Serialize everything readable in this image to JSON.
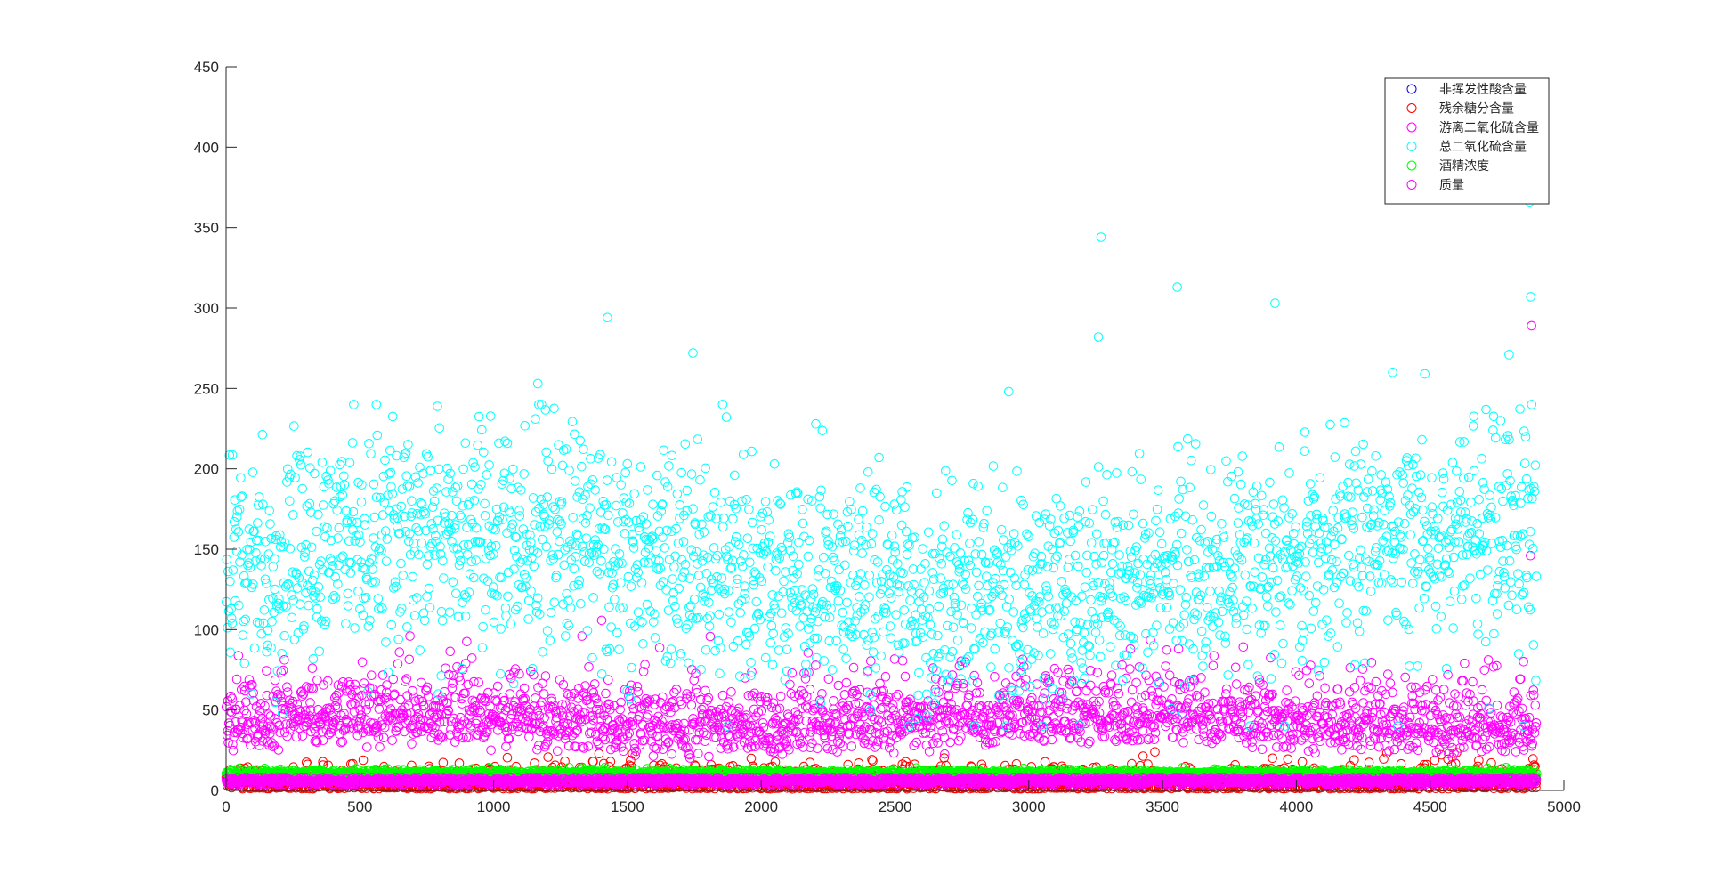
{
  "chart_data": {
    "type": "scatter",
    "title": "",
    "xlabel": "",
    "ylabel": "",
    "xlim": [
      0,
      5000
    ],
    "ylim": [
      0,
      450
    ],
    "x_ticks": [
      0,
      500,
      1000,
      1500,
      2000,
      2500,
      3000,
      3500,
      4000,
      4500,
      5000
    ],
    "y_ticks": [
      0,
      50,
      100,
      150,
      200,
      250,
      300,
      350,
      400,
      450
    ],
    "x_tick_labels": [
      "0",
      "500",
      "1000",
      "1500",
      "2000",
      "2500",
      "3000",
      "3500",
      "4000",
      "4500",
      "5000"
    ],
    "y_tick_labels": [
      "0",
      "50",
      "100",
      "150",
      "200",
      "250",
      "300",
      "350",
      "400",
      "450"
    ],
    "grid": false,
    "legend_position": "top-right",
    "marker": "circle-open",
    "num_samples": 4898,
    "series": [
      {
        "name": "非挥发性酸含量",
        "color": "#0000ff",
        "y_range": [
          3.8,
          14.2
        ],
        "typical": 6.85
      },
      {
        "name": "残余糖分含量",
        "color": "#ff0000",
        "y_range": [
          0.6,
          65.8
        ],
        "typical": 6.4
      },
      {
        "name": "游离二氧化硫含量",
        "color": "#ff00ff",
        "y_range": [
          2,
          289
        ],
        "typical": 35,
        "notable_points": [
          [
            4879,
            289
          ],
          [
            4875,
            146
          ],
          [
            1330,
            96
          ],
          [
            3560,
            88
          ]
        ]
      },
      {
        "name": "总二氧化硫含量",
        "color": "#00ffff",
        "y_range": [
          9,
          366
        ],
        "typical": 138,
        "notable_points": [
          [
            4872,
            366
          ],
          [
            4876,
            307
          ],
          [
            3270,
            344
          ],
          [
            3555,
            313
          ],
          [
            3920,
            303
          ],
          [
            1425,
            294
          ],
          [
            3260,
            282
          ],
          [
            1745,
            272
          ],
          [
            4795,
            271
          ],
          [
            4360,
            260
          ],
          [
            4480,
            259
          ],
          [
            1165,
            253
          ],
          [
            2925,
            248
          ]
        ]
      },
      {
        "name": "酒精浓度",
        "color": "#00ff00",
        "y_range": [
          8,
          14.2
        ],
        "typical": 10.5
      },
      {
        "name": "质量",
        "color": "#ff00ff",
        "y_range": [
          3,
          9
        ],
        "typical": 5.9
      }
    ]
  }
}
